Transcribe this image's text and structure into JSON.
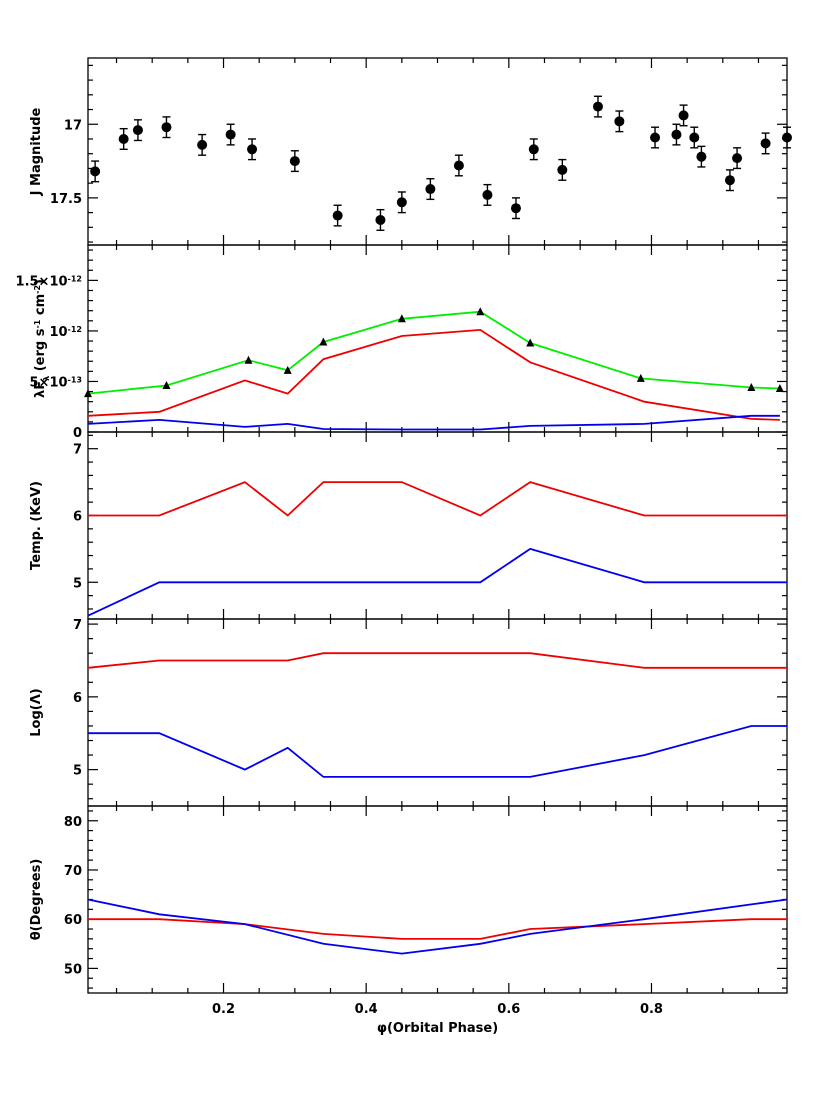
{
  "chart_data": [
    {
      "type": "scatter",
      "ylabel": "J Magnitude",
      "ylim": [
        17.82,
        16.55
      ],
      "inverted": true,
      "yticks": [
        17,
        17.5
      ],
      "ytick_labels": [
        "17",
        "17.5"
      ],
      "errorbars": true,
      "series": [
        {
          "color": "#000000",
          "marker": "circle",
          "points": [
            {
              "x": 0.02,
              "y": 17.32,
              "err": 0.07
            },
            {
              "x": 0.06,
              "y": 17.1,
              "err": 0.07
            },
            {
              "x": 0.08,
              "y": 17.04,
              "err": 0.07
            },
            {
              "x": 0.12,
              "y": 17.02,
              "err": 0.07
            },
            {
              "x": 0.17,
              "y": 17.14,
              "err": 0.07
            },
            {
              "x": 0.21,
              "y": 17.07,
              "err": 0.07
            },
            {
              "x": 0.24,
              "y": 17.17,
              "err": 0.07
            },
            {
              "x": 0.3,
              "y": 17.25,
              "err": 0.07
            },
            {
              "x": 0.36,
              "y": 17.62,
              "err": 0.07
            },
            {
              "x": 0.42,
              "y": 17.65,
              "err": 0.07
            },
            {
              "x": 0.45,
              "y": 17.53,
              "err": 0.07
            },
            {
              "x": 0.49,
              "y": 17.44,
              "err": 0.07
            },
            {
              "x": 0.53,
              "y": 17.28,
              "err": 0.07
            },
            {
              "x": 0.57,
              "y": 17.48,
              "err": 0.07
            },
            {
              "x": 0.61,
              "y": 17.57,
              "err": 0.07
            },
            {
              "x": 0.635,
              "y": 17.17,
              "err": 0.07
            },
            {
              "x": 0.675,
              "y": 17.31,
              "err": 0.07
            },
            {
              "x": 0.725,
              "y": 16.88,
              "err": 0.07
            },
            {
              "x": 0.755,
              "y": 16.98,
              "err": 0.07
            },
            {
              "x": 0.805,
              "y": 17.09,
              "err": 0.07
            },
            {
              "x": 0.835,
              "y": 17.07,
              "err": 0.07
            },
            {
              "x": 0.845,
              "y": 16.94,
              "err": 0.07
            },
            {
              "x": 0.86,
              "y": 17.09,
              "err": 0.07
            },
            {
              "x": 0.87,
              "y": 17.22,
              "err": 0.07
            },
            {
              "x": 0.91,
              "y": 17.38,
              "err": 0.07
            },
            {
              "x": 0.92,
              "y": 17.23,
              "err": 0.07
            },
            {
              "x": 0.96,
              "y": 17.13,
              "err": 0.07
            },
            {
              "x": 0.99,
              "y": 17.09,
              "err": 0.07
            }
          ]
        }
      ]
    },
    {
      "type": "line",
      "ylabel_main": "λF",
      "ylabel_sub": "λ",
      "ylabel_rest": " (erg s",
      "ylabel_rest2": " cm",
      "ylabel_exp1": "-1",
      "ylabel_exp2": "-2",
      "ylabel_close": ")",
      "ylim": [
        0,
        1.85e-12
      ],
      "yticks": [
        0,
        5e-13,
        1e-12,
        1.5e-12
      ],
      "ytick_labels": [
        {
          "mant": "0",
          "exp": ""
        },
        {
          "mant": "5×10",
          "exp": "-13"
        },
        {
          "mant": "10",
          "exp": "-12"
        },
        {
          "mant": "1.5×10",
          "exp": "-12"
        }
      ],
      "series": [
        {
          "color": "#00ee00",
          "marker": "triangle",
          "x": [
            0.01,
            0.12,
            0.235,
            0.29,
            0.34,
            0.45,
            0.56,
            0.63,
            0.785,
            0.94,
            0.98
          ],
          "y": [
            3.8e-13,
            4.6e-13,
            7.1e-13,
            6.1e-13,
            8.9e-13,
            1.12e-12,
            1.19e-12,
            8.8e-13,
            5.3e-13,
            4.4e-13,
            4.3e-13
          ]
        },
        {
          "color": "#ee0000",
          "marker": "none",
          "x": [
            0.01,
            0.11,
            0.23,
            0.29,
            0.34,
            0.45,
            0.56,
            0.63,
            0.79,
            0.94,
            0.98
          ],
          "y": [
            1.6e-13,
            2e-13,
            5.1e-13,
            3.8e-13,
            7.2e-13,
            9.5e-13,
            1.01e-12,
            6.9e-13,
            3e-13,
            1.3e-13,
            1.2e-13
          ]
        },
        {
          "color": "#0000ee",
          "marker": "none",
          "x": [
            0.01,
            0.11,
            0.23,
            0.29,
            0.34,
            0.45,
            0.56,
            0.63,
            0.79,
            0.94,
            0.98
          ],
          "y": [
            8e-14,
            1.2e-13,
            5e-14,
            8e-14,
            3e-14,
            2.5e-14,
            2.5e-14,
            6e-14,
            8e-14,
            1.6e-13,
            1.6e-13
          ]
        }
      ]
    },
    {
      "type": "line",
      "ylabel": "Temp. (KeV)",
      "ylim": [
        4.45,
        7.25
      ],
      "yticks": [
        5,
        6,
        7
      ],
      "ytick_labels": [
        "5",
        "6",
        "7"
      ],
      "series": [
        {
          "color": "#ee0000",
          "x": [
            0.01,
            0.11,
            0.23,
            0.29,
            0.34,
            0.45,
            0.56,
            0.63,
            0.79,
            0.94,
            0.99
          ],
          "y": [
            6,
            6,
            6.5,
            6,
            6.5,
            6.5,
            6,
            6.5,
            6,
            6,
            6
          ]
        },
        {
          "color": "#0000ee",
          "x": [
            0.01,
            0.11,
            0.23,
            0.29,
            0.34,
            0.45,
            0.56,
            0.63,
            0.79,
            0.94,
            0.99
          ],
          "y": [
            4.5,
            5,
            5,
            5,
            5,
            5,
            5,
            5.5,
            5,
            5,
            5
          ]
        }
      ]
    },
    {
      "type": "line",
      "ylabel": "Log(Λ)",
      "ylim": [
        4.5,
        7.07
      ],
      "yticks": [
        5,
        6,
        7
      ],
      "ytick_labels": [
        "5",
        "6",
        "7"
      ],
      "series": [
        {
          "color": "#ee0000",
          "x": [
            0.01,
            0.11,
            0.23,
            0.29,
            0.34,
            0.45,
            0.56,
            0.63,
            0.79,
            0.94,
            0.99
          ],
          "y": [
            6.4,
            6.5,
            6.5,
            6.5,
            6.6,
            6.6,
            6.6,
            6.6,
            6.4,
            6.4,
            6.4
          ]
        },
        {
          "color": "#0000ee",
          "x": [
            0.01,
            0.11,
            0.23,
            0.29,
            0.34,
            0.45,
            0.56,
            0.63,
            0.79,
            0.94,
            0.99
          ],
          "y": [
            5.5,
            5.5,
            5,
            5.3,
            4.9,
            4.9,
            4.9,
            4.9,
            5.2,
            5.6,
            5.6
          ]
        }
      ]
    },
    {
      "type": "line",
      "ylabel": "θ(Degrees)",
      "xlabel": "φ(Orbital Phase)",
      "xlim": [
        0.01,
        0.99
      ],
      "xticks": [
        0.2,
        0.4,
        0.6,
        0.8
      ],
      "xtick_labels": [
        "0.2",
        "0.4",
        "0.6",
        "0.8"
      ],
      "ylim": [
        45,
        83
      ],
      "yticks": [
        50,
        60,
        70,
        80
      ],
      "ytick_labels": [
        "50",
        "60",
        "70",
        "80"
      ],
      "series": [
        {
          "color": "#ee0000",
          "x": [
            0.01,
            0.11,
            0.23,
            0.34,
            0.45,
            0.56,
            0.63,
            0.79,
            0.94,
            0.99
          ],
          "y": [
            60,
            60,
            59,
            57,
            56,
            56,
            58,
            59,
            60,
            60
          ]
        },
        {
          "color": "#0000ee",
          "x": [
            0.01,
            0.11,
            0.23,
            0.34,
            0.45,
            0.56,
            0.63,
            0.79,
            0.94,
            0.99
          ],
          "y": [
            64,
            61,
            59,
            55,
            53,
            55,
            57,
            60,
            63,
            64
          ]
        }
      ]
    }
  ]
}
